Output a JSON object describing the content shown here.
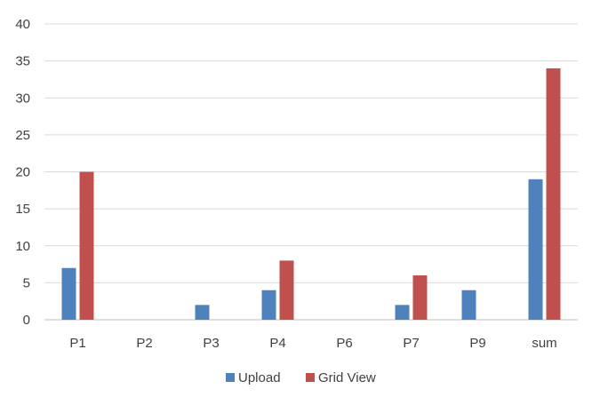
{
  "chart_data": {
    "type": "bar",
    "title": "",
    "xlabel": "",
    "ylabel": "",
    "categories": [
      "P1",
      "P2",
      "P3",
      "P4",
      "P6",
      "P7",
      "P9",
      "sum"
    ],
    "series": [
      {
        "name": "Upload",
        "color": "#4F81BD",
        "values": [
          7,
          0,
          2,
          4,
          0,
          2,
          4,
          19
        ]
      },
      {
        "name": "Grid View",
        "color": "#C0504D",
        "values": [
          20,
          0,
          0,
          8,
          0,
          6,
          0,
          34
        ]
      }
    ],
    "ylim": [
      0,
      40
    ],
    "yticks": [
      0,
      5,
      10,
      15,
      20,
      25,
      30,
      35,
      40
    ],
    "grid": true,
    "legend_position": "bottom"
  }
}
